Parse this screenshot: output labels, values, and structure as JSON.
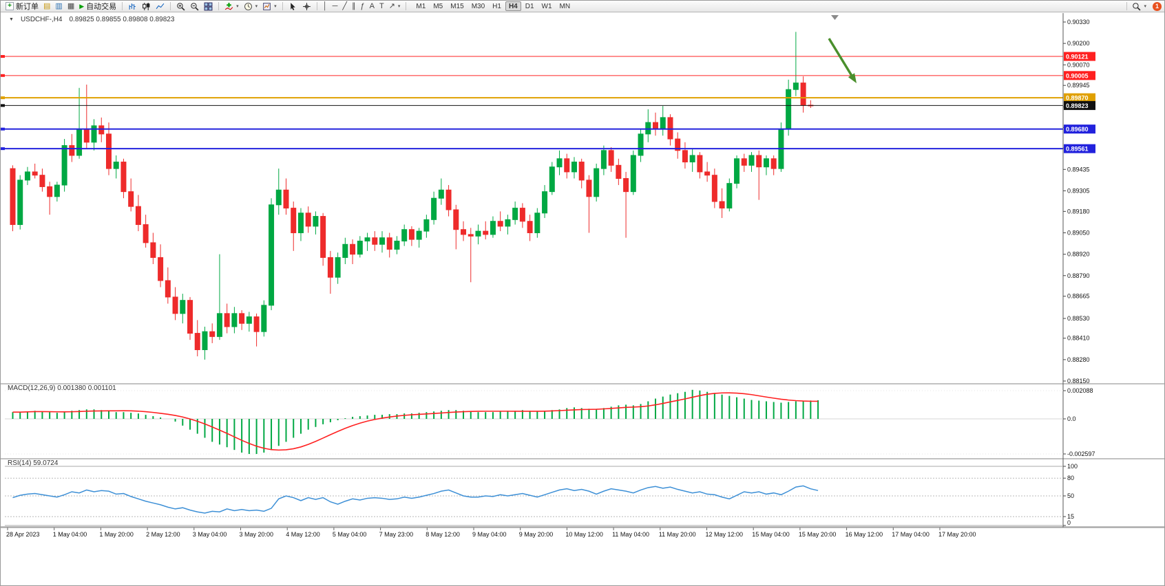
{
  "toolbar": {
    "new_order": "新订单",
    "auto_trading": "自动交易",
    "timeframes": [
      "M1",
      "M5",
      "M15",
      "M30",
      "H1",
      "H4",
      "D1",
      "W1",
      "MN"
    ],
    "active_timeframe": "H4",
    "notification_count": "1"
  },
  "colors": {
    "bull": "#00a843",
    "bear": "#ee2b2b",
    "macd_hist": "#00a843",
    "macd_signal": "#ff2020",
    "rsi_line": "#3c8fd6",
    "arrow": "#4a8f2c",
    "level_red": "#ff2020",
    "level_orange": "#e0a000",
    "level_blue": "#2222dd",
    "current_price": "#111111"
  },
  "chart_data": [
    {
      "type": "candlestick",
      "title": "USDCHF-,H4",
      "ohlc_text": "0.89825 0.89855 0.89808 0.89823",
      "open": 0.89825,
      "high": 0.89855,
      "low": 0.89808,
      "close": 0.89823,
      "ylim": [
        0.8815,
        0.9033
      ],
      "y_ticks": [
        "0.90330",
        "0.90200",
        "0.90070",
        "0.89945",
        "0.89815",
        "0.89690",
        "0.89565",
        "0.89435",
        "0.89305",
        "0.89180",
        "0.89050",
        "0.88920",
        "0.88790",
        "0.88665",
        "0.88530",
        "0.88410",
        "0.88280",
        "0.88150"
      ],
      "hlines": [
        {
          "price": 0.90121,
          "label": "0.90121",
          "color": "#ff2020",
          "width": 1
        },
        {
          "price": 0.90005,
          "label": "0.90005",
          "color": "#ff2020",
          "width": 1
        },
        {
          "price": 0.8987,
          "label": "0.89870",
          "color": "#e0a000",
          "width": 2
        },
        {
          "price": 0.89823,
          "label": "0.89823",
          "color": "#111111",
          "width": 1,
          "current": true
        },
        {
          "price": 0.8968,
          "label": "0.89680",
          "color": "#2222dd",
          "width": 2
        },
        {
          "price": 0.89561,
          "label": "0.89561",
          "color": "#2222dd",
          "width": 2
        }
      ],
      "x_labels": [
        "28 Apr 2023",
        "1 May 04:00",
        "1 May 20:00",
        "2 May 12:00",
        "3 May 04:00",
        "3 May 20:00",
        "4 May 12:00",
        "5 May 04:00",
        "7 May 23:00",
        "8 May 12:00",
        "9 May 04:00",
        "9 May 20:00",
        "10 May 12:00",
        "11 May 04:00",
        "11 May 20:00",
        "12 May 12:00",
        "15 May 04:00",
        "15 May 20:00",
        "16 May 12:00",
        "17 May 04:00",
        "17 May 20:00"
      ],
      "candles": [
        [
          0.8944,
          0.8946,
          0.8906,
          0.891
        ],
        [
          0.891,
          0.894,
          0.8907,
          0.8937
        ],
        [
          0.8937,
          0.8945,
          0.8934,
          0.8942
        ],
        [
          0.8942,
          0.8947,
          0.8938,
          0.894
        ],
        [
          0.894,
          0.8944,
          0.893,
          0.8933
        ],
        [
          0.8933,
          0.8936,
          0.8916,
          0.8927
        ],
        [
          0.8927,
          0.8936,
          0.8924,
          0.8934
        ],
        [
          0.8934,
          0.8962,
          0.893,
          0.8958
        ],
        [
          0.8958,
          0.8965,
          0.8948,
          0.8952
        ],
        [
          0.8952,
          0.8993,
          0.895,
          0.8968
        ],
        [
          0.8968,
          0.8995,
          0.8956,
          0.896
        ],
        [
          0.896,
          0.8974,
          0.8955,
          0.897
        ],
        [
          0.897,
          0.8975,
          0.896,
          0.8965
        ],
        [
          0.8965,
          0.8972,
          0.894,
          0.8944
        ],
        [
          0.8944,
          0.8952,
          0.8938,
          0.8948
        ],
        [
          0.8948,
          0.895,
          0.8926,
          0.893
        ],
        [
          0.893,
          0.8938,
          0.8918,
          0.8921
        ],
        [
          0.8921,
          0.8928,
          0.8906,
          0.891
        ],
        [
          0.891,
          0.8916,
          0.8896,
          0.8899
        ],
        [
          0.8899,
          0.8905,
          0.8886,
          0.889
        ],
        [
          0.889,
          0.8898,
          0.8872,
          0.8876
        ],
        [
          0.8876,
          0.8884,
          0.8862,
          0.8866
        ],
        [
          0.8866,
          0.8872,
          0.8852,
          0.8856
        ],
        [
          0.8856,
          0.8868,
          0.885,
          0.8864
        ],
        [
          0.8864,
          0.8866,
          0.884,
          0.8844
        ],
        [
          0.8844,
          0.8852,
          0.883,
          0.8834
        ],
        [
          0.8834,
          0.8848,
          0.8828,
          0.8845
        ],
        [
          0.8845,
          0.885,
          0.8838,
          0.8842
        ],
        [
          0.8842,
          0.8892,
          0.884,
          0.8856
        ],
        [
          0.8856,
          0.8862,
          0.8844,
          0.8848
        ],
        [
          0.8848,
          0.886,
          0.8844,
          0.8856
        ],
        [
          0.8856,
          0.8858,
          0.8846,
          0.885
        ],
        [
          0.885,
          0.8857,
          0.8845,
          0.8854
        ],
        [
          0.8854,
          0.8856,
          0.8836,
          0.8845
        ],
        [
          0.8845,
          0.8864,
          0.8842,
          0.8861
        ],
        [
          0.8861,
          0.8926,
          0.8858,
          0.8922
        ],
        [
          0.8922,
          0.8944,
          0.8916,
          0.8931
        ],
        [
          0.8931,
          0.8938,
          0.8916,
          0.892
        ],
        [
          0.892,
          0.8924,
          0.8894,
          0.8905
        ],
        [
          0.8905,
          0.892,
          0.89,
          0.8917
        ],
        [
          0.8917,
          0.8921,
          0.8905,
          0.8909
        ],
        [
          0.8909,
          0.8918,
          0.8904,
          0.8915
        ],
        [
          0.8915,
          0.8917,
          0.8885,
          0.889
        ],
        [
          0.889,
          0.8894,
          0.8868,
          0.8878
        ],
        [
          0.8878,
          0.8893,
          0.8874,
          0.889
        ],
        [
          0.889,
          0.8902,
          0.8886,
          0.8898
        ],
        [
          0.8898,
          0.8901,
          0.8886,
          0.8892
        ],
        [
          0.8892,
          0.8903,
          0.889,
          0.89
        ],
        [
          0.89,
          0.8905,
          0.8894,
          0.8902
        ],
        [
          0.8902,
          0.8906,
          0.8894,
          0.8898
        ],
        [
          0.8898,
          0.8906,
          0.8893,
          0.8902
        ],
        [
          0.8902,
          0.8905,
          0.889,
          0.8895
        ],
        [
          0.8895,
          0.8903,
          0.8892,
          0.89
        ],
        [
          0.89,
          0.891,
          0.8897,
          0.8907
        ],
        [
          0.8907,
          0.8909,
          0.8897,
          0.8901
        ],
        [
          0.8901,
          0.8908,
          0.8896,
          0.8906
        ],
        [
          0.8906,
          0.8916,
          0.8902,
          0.8913
        ],
        [
          0.8913,
          0.893,
          0.891,
          0.8926
        ],
        [
          0.8926,
          0.8938,
          0.8922,
          0.8931
        ],
        [
          0.8931,
          0.8934,
          0.8915,
          0.8919
        ],
        [
          0.8919,
          0.8922,
          0.8895,
          0.8907
        ],
        [
          0.8907,
          0.8912,
          0.89,
          0.8904
        ],
        [
          0.8904,
          0.8908,
          0.8875,
          0.8903
        ],
        [
          0.8903,
          0.891,
          0.8898,
          0.8906
        ],
        [
          0.8906,
          0.8912,
          0.8901,
          0.8904
        ],
        [
          0.8904,
          0.8915,
          0.8902,
          0.8912
        ],
        [
          0.8912,
          0.8918,
          0.8906,
          0.8909
        ],
        [
          0.8909,
          0.8916,
          0.8904,
          0.8913
        ],
        [
          0.8913,
          0.8924,
          0.891,
          0.892
        ],
        [
          0.892,
          0.8923,
          0.8908,
          0.8912
        ],
        [
          0.8912,
          0.8916,
          0.89,
          0.8905
        ],
        [
          0.8905,
          0.892,
          0.8902,
          0.8917
        ],
        [
          0.8917,
          0.8934,
          0.8914,
          0.893
        ],
        [
          0.893,
          0.8948,
          0.8928,
          0.8945
        ],
        [
          0.8945,
          0.8955,
          0.894,
          0.895
        ],
        [
          0.895,
          0.8953,
          0.8938,
          0.8942
        ],
        [
          0.8942,
          0.8951,
          0.8938,
          0.8948
        ],
        [
          0.8948,
          0.895,
          0.8932,
          0.8937
        ],
        [
          0.8937,
          0.894,
          0.8905,
          0.8927
        ],
        [
          0.8927,
          0.8947,
          0.8924,
          0.8944
        ],
        [
          0.8944,
          0.8958,
          0.894,
          0.8955
        ],
        [
          0.8955,
          0.8957,
          0.8942,
          0.8946
        ],
        [
          0.8946,
          0.895,
          0.8934,
          0.8938
        ],
        [
          0.8938,
          0.8942,
          0.8902,
          0.893
        ],
        [
          0.893,
          0.8955,
          0.8928,
          0.8952
        ],
        [
          0.8952,
          0.8968,
          0.8948,
          0.8965
        ],
        [
          0.8965,
          0.898,
          0.896,
          0.8972
        ],
        [
          0.8972,
          0.8978,
          0.8964,
          0.8968
        ],
        [
          0.8968,
          0.8982,
          0.8964,
          0.8975
        ],
        [
          0.8975,
          0.8977,
          0.8958,
          0.8962
        ],
        [
          0.8962,
          0.8966,
          0.895,
          0.8955
        ],
        [
          0.8955,
          0.896,
          0.8944,
          0.8948
        ],
        [
          0.8948,
          0.8956,
          0.8942,
          0.8952
        ],
        [
          0.8952,
          0.8954,
          0.8938,
          0.8942
        ],
        [
          0.8942,
          0.8948,
          0.8936,
          0.894
        ],
        [
          0.894,
          0.8944,
          0.892,
          0.8924
        ],
        [
          0.8924,
          0.8932,
          0.8914,
          0.892
        ],
        [
          0.892,
          0.8938,
          0.8918,
          0.8935
        ],
        [
          0.8935,
          0.8952,
          0.8932,
          0.895
        ],
        [
          0.895,
          0.8953,
          0.8942,
          0.8946
        ],
        [
          0.8946,
          0.8954,
          0.8942,
          0.8952
        ],
        [
          0.8952,
          0.8955,
          0.8925,
          0.8945
        ],
        [
          0.8945,
          0.8952,
          0.894,
          0.895
        ],
        [
          0.895,
          0.8952,
          0.894,
          0.8944
        ],
        [
          0.8944,
          0.8972,
          0.8942,
          0.8968
        ],
        [
          0.8968,
          0.8998,
          0.8964,
          0.8992
        ],
        [
          0.8992,
          0.9027,
          0.8988,
          0.8996
        ],
        [
          0.8996,
          0.9,
          0.8978,
          0.89825
        ],
        [
          0.89825,
          0.89855,
          0.89808,
          0.89823
        ]
      ]
    },
    {
      "type": "macd",
      "label_text": "MACD(12,26,9) 0.001380 0.001101",
      "params": "12,26,9",
      "main_value": "0.001380",
      "signal_value": "0.001101",
      "y_ticks": [
        {
          "v": 0.002088,
          "label": "0.002088"
        },
        {
          "v": 0,
          "label": "0.0"
        },
        {
          "v": -0.002597,
          "label": "-0.002597"
        }
      ],
      "histogram": [
        0.0005,
        0.0005,
        0.00055,
        0.0006,
        0.00055,
        0.0005,
        0.00045,
        0.0005,
        0.0006,
        0.00065,
        0.0007,
        0.0007,
        0.00065,
        0.0006,
        0.0005,
        0.0005,
        0.00045,
        0.0004,
        0.0003,
        0.0002,
        0.0001,
        0,
        -0.0002,
        -0.0005,
        -0.0008,
        -0.0011,
        -0.0014,
        -0.0017,
        -0.0019,
        -0.0021,
        -0.0023,
        -0.0025,
        -0.0026,
        -0.0026,
        -0.0025,
        -0.0023,
        -0.002,
        -0.0017,
        -0.0014,
        -0.0011,
        -0.0008,
        -0.0006,
        -0.0004,
        -0.00025,
        -0.0001,
        5e-05,
        0.00015,
        0.0002,
        0.00025,
        0.0003,
        0.0003,
        0.00035,
        0.00035,
        0.0004,
        0.0004,
        0.00045,
        0.0005,
        0.00055,
        0.0006,
        0.00065,
        0.00065,
        0.0006,
        0.00055,
        0.0005,
        0.0005,
        0.0005,
        0.00055,
        0.0006,
        0.0006,
        0.00065,
        0.0006,
        0.00055,
        0.0006,
        0.00065,
        0.0007,
        0.0008,
        0.00085,
        0.0008,
        0.00075,
        0.0007,
        0.0008,
        0.0009,
        0.001,
        0.00105,
        0.001,
        0.0011,
        0.0013,
        0.0015,
        0.00165,
        0.0018,
        0.0019,
        0.002,
        0.00215,
        0.0021,
        0.002,
        0.0019,
        0.0018,
        0.0017,
        0.0016,
        0.0015,
        0.0014,
        0.00135,
        0.0013,
        0.00125,
        0.0012,
        0.00125,
        0.0013,
        0.00133,
        0.00136,
        0.00138
      ]
    },
    {
      "type": "rsi",
      "label_text": "RSI(14) 59.0724",
      "value": 59.0724,
      "levels": [
        80,
        50,
        15
      ],
      "y_ticks": [
        {
          "v": 100,
          "label": "100"
        },
        {
          "v": 80,
          "label": "80"
        },
        {
          "v": 50,
          "label": "50"
        },
        {
          "v": 15,
          "label": "15"
        },
        {
          "v": 0,
          "label": "0"
        }
      ],
      "values": [
        47,
        51,
        53,
        54,
        52,
        50,
        48,
        52,
        57,
        55,
        60,
        57,
        59,
        58,
        53,
        54,
        49,
        45,
        41,
        38,
        35,
        31,
        28,
        30,
        26,
        23,
        21,
        24,
        23,
        28,
        25,
        27,
        25,
        26,
        24,
        29,
        45,
        50,
        47,
        42,
        47,
        44,
        47,
        40,
        36,
        41,
        45,
        43,
        46,
        47,
        46,
        44,
        45,
        48,
        46,
        48,
        51,
        54,
        58,
        60,
        55,
        50,
        48,
        48,
        50,
        49,
        52,
        50,
        52,
        54,
        51,
        48,
        52,
        56,
        60,
        62,
        59,
        61,
        58,
        53,
        58,
        62,
        60,
        58,
        55,
        60,
        64,
        66,
        63,
        65,
        61,
        58,
        55,
        57,
        53,
        52,
        48,
        45,
        51,
        57,
        55,
        57,
        53,
        55,
        52,
        58,
        65,
        67,
        62,
        59.07
      ]
    }
  ]
}
